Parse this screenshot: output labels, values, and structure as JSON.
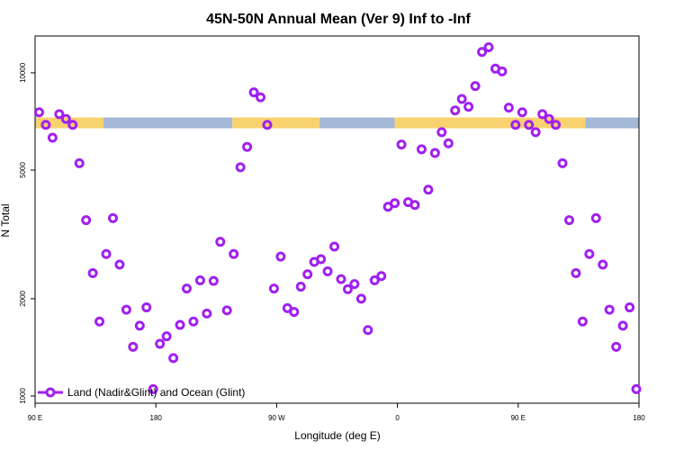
{
  "chart_data": {
    "type": "scatter",
    "title": "45N-50N Annual Mean (Ver 9)   Inf to -Inf",
    "xlabel": "Longitude (deg E)",
    "ylabel": "N Total",
    "x_ticks": [
      {
        "value": 90,
        "label": "90 E"
      },
      {
        "value": 180,
        "label": "180"
      },
      {
        "value": 270,
        "label": "90 W"
      },
      {
        "value": 360,
        "label": "0"
      },
      {
        "value": 450,
        "label": "90 E"
      },
      {
        "value": 540,
        "label": "180"
      }
    ],
    "y_ticks": [
      {
        "value": 1000,
        "label": "1000"
      },
      {
        "value": 2000,
        "label": "2000"
      },
      {
        "value": 5000,
        "label": "5000"
      },
      {
        "value": 10000,
        "label": "10000"
      }
    ],
    "xlim": [
      90,
      540
    ],
    "ylim": [
      950,
      13000
    ],
    "yscale": "log",
    "legend": {
      "label": "Land (Nadir&Glint) and Ocean (Glint)",
      "position": "bottom-left"
    },
    "colors": {
      "marker": "#a020f0",
      "land": "#f8d26e",
      "ocean": "#a3b8d6"
    },
    "land_ocean_strip": {
      "y_value": 7000,
      "segments": [
        {
          "type": "land",
          "x0": 90,
          "x1": 141
        },
        {
          "type": "ocean",
          "x0": 141,
          "x1": 237
        },
        {
          "type": "land",
          "x0": 237,
          "x1": 302
        },
        {
          "type": "ocean",
          "x0": 302,
          "x1": 358
        },
        {
          "type": "land",
          "x0": 358,
          "x1": 500
        },
        {
          "type": "ocean",
          "x0": 500,
          "x1": 540
        }
      ]
    },
    "series": [
      {
        "name": "Land (Nadir&Glint) and Ocean (Glint)",
        "points": [
          [
            93,
            7550
          ],
          [
            98,
            6900
          ],
          [
            103,
            6300
          ],
          [
            108,
            7450
          ],
          [
            113,
            7200
          ],
          [
            118,
            6900
          ],
          [
            123,
            5250
          ],
          [
            128,
            3500
          ],
          [
            133,
            2400
          ],
          [
            138,
            1700
          ],
          [
            143,
            2750
          ],
          [
            148,
            3550
          ],
          [
            153,
            2550
          ],
          [
            158,
            1850
          ],
          [
            163,
            1420
          ],
          [
            168,
            1650
          ],
          [
            173,
            1880
          ],
          [
            178,
            1050
          ],
          [
            183,
            1450
          ],
          [
            188,
            1530
          ],
          [
            193,
            1310
          ],
          [
            198,
            1660
          ],
          [
            203,
            2150
          ],
          [
            208,
            1700
          ],
          [
            213,
            2280
          ],
          [
            218,
            1800
          ],
          [
            223,
            2270
          ],
          [
            228,
            3000
          ],
          [
            233,
            1840
          ],
          [
            238,
            2750
          ],
          [
            243,
            5100
          ],
          [
            248,
            5900
          ],
          [
            253,
            8700
          ],
          [
            258,
            8400
          ],
          [
            263,
            6900
          ],
          [
            268,
            2150
          ],
          [
            273,
            2700
          ],
          [
            278,
            1870
          ],
          [
            283,
            1820
          ],
          [
            288,
            2180
          ],
          [
            293,
            2380
          ],
          [
            298,
            2600
          ],
          [
            303,
            2650
          ],
          [
            308,
            2430
          ],
          [
            313,
            2900
          ],
          [
            318,
            2300
          ],
          [
            323,
            2140
          ],
          [
            328,
            2220
          ],
          [
            333,
            2000
          ],
          [
            338,
            1600
          ],
          [
            343,
            2280
          ],
          [
            348,
            2350
          ],
          [
            353,
            3850
          ],
          [
            358,
            3950
          ],
          [
            363,
            6000
          ],
          [
            368,
            3980
          ],
          [
            373,
            3900
          ],
          [
            378,
            5800
          ],
          [
            383,
            4350
          ],
          [
            388,
            5650
          ],
          [
            393,
            6550
          ],
          [
            398,
            6050
          ],
          [
            403,
            7650
          ],
          [
            408,
            8300
          ],
          [
            413,
            7850
          ],
          [
            418,
            9100
          ],
          [
            423,
            11600
          ],
          [
            428,
            12000
          ],
          [
            433,
            10300
          ],
          [
            438,
            10100
          ],
          [
            443,
            7800
          ],
          [
            448,
            6900
          ],
          [
            453,
            7550
          ],
          [
            458,
            6900
          ],
          [
            463,
            6550
          ],
          [
            468,
            7450
          ],
          [
            473,
            7200
          ],
          [
            478,
            6900
          ],
          [
            483,
            5250
          ],
          [
            488,
            3500
          ],
          [
            493,
            2400
          ],
          [
            498,
            1700
          ],
          [
            503,
            2750
          ],
          [
            508,
            3550
          ],
          [
            513,
            2550
          ],
          [
            518,
            1850
          ],
          [
            523,
            1420
          ],
          [
            528,
            1650
          ],
          [
            533,
            1880
          ],
          [
            538,
            1050
          ]
        ]
      }
    ]
  }
}
